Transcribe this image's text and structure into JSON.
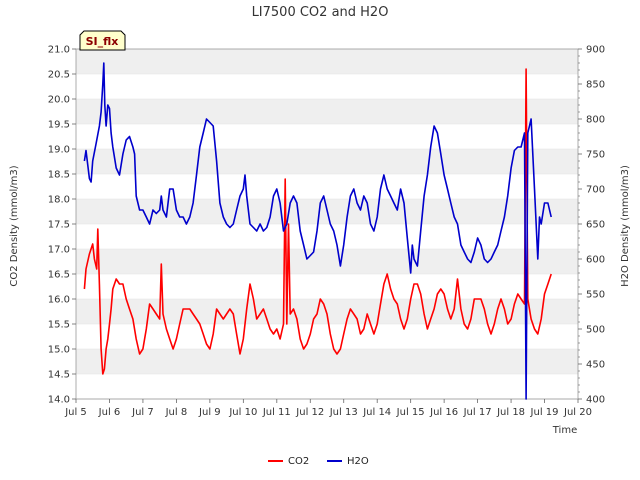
{
  "chart_data": {
    "type": "line",
    "title": "LI7500 CO2 and H2O",
    "xlabel": "Time",
    "ylabel_left": "CO2 Density (mmol/m3)",
    "ylabel_right": "H2O Density (mmol/m3)",
    "badge": "SI_flx",
    "x_ticks": [
      "Jul 5",
      "Jul 6",
      "Jul 7",
      "Jul 8",
      "Jul 9",
      "Jul 10",
      "Jul 11",
      "Jul 12",
      "Jul 13",
      "Jul 14",
      "Jul 15",
      "Jul 16",
      "Jul 17",
      "Jul 18",
      "Jul 19",
      "Jul 20"
    ],
    "xlim": [
      5,
      20
    ],
    "ylim_left": [
      14.0,
      21.0
    ],
    "ylim_right": [
      400,
      900
    ],
    "yticks_left": [
      "14.0",
      "14.5",
      "15.0",
      "15.5",
      "16.0",
      "16.5",
      "17.0",
      "17.5",
      "18.0",
      "18.5",
      "19.0",
      "19.5",
      "20.0",
      "20.5",
      "21.0"
    ],
    "yticks_right": [
      "400",
      "450",
      "500",
      "550",
      "600",
      "650",
      "700",
      "750",
      "800",
      "850",
      "900"
    ],
    "grid": "horizontal bands",
    "legend_position": "bottom-center",
    "colors": {
      "CO2": "#ff0000",
      "H2O": "#0000cc",
      "band": "#efefef",
      "axis": "#999999",
      "badge_bg": "#ffffcc"
    },
    "series": [
      {
        "name": "CO2",
        "axis": "left",
        "color": "#ff0000",
        "points": [
          [
            5.25,
            16.2
          ],
          [
            5.3,
            16.6
          ],
          [
            5.4,
            16.9
          ],
          [
            5.5,
            17.1
          ],
          [
            5.55,
            16.8
          ],
          [
            5.62,
            16.6
          ],
          [
            5.65,
            17.4
          ],
          [
            5.7,
            16.3
          ],
          [
            5.75,
            15.0
          ],
          [
            5.8,
            14.5
          ],
          [
            5.85,
            14.6
          ],
          [
            5.9,
            15.0
          ],
          [
            5.95,
            15.2
          ],
          [
            6.0,
            15.5
          ],
          [
            6.05,
            15.8
          ],
          [
            6.1,
            16.2
          ],
          [
            6.2,
            16.4
          ],
          [
            6.3,
            16.3
          ],
          [
            6.4,
            16.3
          ],
          [
            6.5,
            16.0
          ],
          [
            6.6,
            15.8
          ],
          [
            6.7,
            15.6
          ],
          [
            6.8,
            15.2
          ],
          [
            6.9,
            14.9
          ],
          [
            7.0,
            15.0
          ],
          [
            7.1,
            15.4
          ],
          [
            7.2,
            15.9
          ],
          [
            7.3,
            15.8
          ],
          [
            7.4,
            15.7
          ],
          [
            7.5,
            15.6
          ],
          [
            7.55,
            16.7
          ],
          [
            7.6,
            15.7
          ],
          [
            7.7,
            15.4
          ],
          [
            7.8,
            15.2
          ],
          [
            7.9,
            15.0
          ],
          [
            8.0,
            15.2
          ],
          [
            8.1,
            15.5
          ],
          [
            8.2,
            15.8
          ],
          [
            8.3,
            15.8
          ],
          [
            8.4,
            15.8
          ],
          [
            8.5,
            15.7
          ],
          [
            8.6,
            15.6
          ],
          [
            8.7,
            15.5
          ],
          [
            8.8,
            15.3
          ],
          [
            8.9,
            15.1
          ],
          [
            9.0,
            15.0
          ],
          [
            9.1,
            15.3
          ],
          [
            9.2,
            15.8
          ],
          [
            9.3,
            15.7
          ],
          [
            9.4,
            15.6
          ],
          [
            9.5,
            15.7
          ],
          [
            9.6,
            15.8
          ],
          [
            9.7,
            15.7
          ],
          [
            9.8,
            15.3
          ],
          [
            9.9,
            14.9
          ],
          [
            10.0,
            15.2
          ],
          [
            10.1,
            15.8
          ],
          [
            10.2,
            16.3
          ],
          [
            10.3,
            16.0
          ],
          [
            10.4,
            15.6
          ],
          [
            10.5,
            15.7
          ],
          [
            10.6,
            15.8
          ],
          [
            10.7,
            15.6
          ],
          [
            10.8,
            15.4
          ],
          [
            10.9,
            15.3
          ],
          [
            11.0,
            15.4
          ],
          [
            11.1,
            15.2
          ],
          [
            11.2,
            15.5
          ],
          [
            11.25,
            18.4
          ],
          [
            11.3,
            15.5
          ],
          [
            11.35,
            17.5
          ],
          [
            11.4,
            15.7
          ],
          [
            11.5,
            15.8
          ],
          [
            11.6,
            15.6
          ],
          [
            11.7,
            15.2
          ],
          [
            11.8,
            15.0
          ],
          [
            11.9,
            15.1
          ],
          [
            12.0,
            15.3
          ],
          [
            12.1,
            15.6
          ],
          [
            12.2,
            15.7
          ],
          [
            12.3,
            16.0
          ],
          [
            12.4,
            15.9
          ],
          [
            12.5,
            15.7
          ],
          [
            12.6,
            15.3
          ],
          [
            12.7,
            15.0
          ],
          [
            12.8,
            14.9
          ],
          [
            12.9,
            15.0
          ],
          [
            13.0,
            15.3
          ],
          [
            13.1,
            15.6
          ],
          [
            13.2,
            15.8
          ],
          [
            13.3,
            15.7
          ],
          [
            13.4,
            15.6
          ],
          [
            13.5,
            15.3
          ],
          [
            13.6,
            15.4
          ],
          [
            13.7,
            15.7
          ],
          [
            13.8,
            15.5
          ],
          [
            13.9,
            15.3
          ],
          [
            14.0,
            15.5
          ],
          [
            14.1,
            15.9
          ],
          [
            14.2,
            16.3
          ],
          [
            14.3,
            16.5
          ],
          [
            14.4,
            16.2
          ],
          [
            14.5,
            16.0
          ],
          [
            14.6,
            15.9
          ],
          [
            14.7,
            15.6
          ],
          [
            14.8,
            15.4
          ],
          [
            14.9,
            15.6
          ],
          [
            15.0,
            16.0
          ],
          [
            15.1,
            16.3
          ],
          [
            15.2,
            16.3
          ],
          [
            15.3,
            16.1
          ],
          [
            15.4,
            15.7
          ],
          [
            15.5,
            15.4
          ],
          [
            15.6,
            15.6
          ],
          [
            15.7,
            15.8
          ],
          [
            15.8,
            16.1
          ],
          [
            15.9,
            16.2
          ],
          [
            16.0,
            16.1
          ],
          [
            16.1,
            15.8
          ],
          [
            16.2,
            15.6
          ],
          [
            16.3,
            15.8
          ],
          [
            16.4,
            16.4
          ],
          [
            16.5,
            15.8
          ],
          [
            16.6,
            15.5
          ],
          [
            16.7,
            15.4
          ],
          [
            16.8,
            15.6
          ],
          [
            16.9,
            16.0
          ],
          [
            17.0,
            16.0
          ],
          [
            17.1,
            16.0
          ],
          [
            17.2,
            15.8
          ],
          [
            17.3,
            15.5
          ],
          [
            17.4,
            15.3
          ],
          [
            17.5,
            15.5
          ],
          [
            17.6,
            15.8
          ],
          [
            17.7,
            16.0
          ],
          [
            17.8,
            15.8
          ],
          [
            17.9,
            15.5
          ],
          [
            18.0,
            15.6
          ],
          [
            18.1,
            15.9
          ],
          [
            18.2,
            16.1
          ],
          [
            18.3,
            16.0
          ],
          [
            18.4,
            15.9
          ],
          [
            18.45,
            20.6
          ],
          [
            18.5,
            16.0
          ],
          [
            18.6,
            15.6
          ],
          [
            18.7,
            15.4
          ],
          [
            18.8,
            15.3
          ],
          [
            18.9,
            15.6
          ],
          [
            19.0,
            16.1
          ],
          [
            19.1,
            16.3
          ],
          [
            19.2,
            16.5
          ]
        ]
      },
      {
        "name": "H2O",
        "axis": "right",
        "color": "#0000cc",
        "points": [
          [
            5.25,
            740
          ],
          [
            5.3,
            755
          ],
          [
            5.35,
            735
          ],
          [
            5.4,
            715
          ],
          [
            5.45,
            710
          ],
          [
            5.5,
            740
          ],
          [
            5.6,
            765
          ],
          [
            5.7,
            790
          ],
          [
            5.75,
            810
          ],
          [
            5.8,
            850
          ],
          [
            5.83,
            880
          ],
          [
            5.86,
            820
          ],
          [
            5.9,
            790
          ],
          [
            5.95,
            820
          ],
          [
            6.0,
            815
          ],
          [
            6.05,
            780
          ],
          [
            6.1,
            760
          ],
          [
            6.2,
            730
          ],
          [
            6.3,
            720
          ],
          [
            6.4,
            750
          ],
          [
            6.5,
            770
          ],
          [
            6.6,
            775
          ],
          [
            6.7,
            760
          ],
          [
            6.75,
            750
          ],
          [
            6.8,
            690
          ],
          [
            6.9,
            670
          ],
          [
            7.0,
            670
          ],
          [
            7.1,
            660
          ],
          [
            7.2,
            650
          ],
          [
            7.3,
            670
          ],
          [
            7.4,
            665
          ],
          [
            7.5,
            670
          ],
          [
            7.55,
            690
          ],
          [
            7.6,
            670
          ],
          [
            7.7,
            660
          ],
          [
            7.8,
            700
          ],
          [
            7.9,
            700
          ],
          [
            8.0,
            670
          ],
          [
            8.1,
            660
          ],
          [
            8.2,
            660
          ],
          [
            8.3,
            650
          ],
          [
            8.4,
            660
          ],
          [
            8.5,
            680
          ],
          [
            8.6,
            720
          ],
          [
            8.7,
            760
          ],
          [
            8.8,
            780
          ],
          [
            8.9,
            800
          ],
          [
            9.0,
            795
          ],
          [
            9.1,
            790
          ],
          [
            9.2,
            740
          ],
          [
            9.3,
            680
          ],
          [
            9.4,
            660
          ],
          [
            9.5,
            650
          ],
          [
            9.6,
            645
          ],
          [
            9.7,
            650
          ],
          [
            9.8,
            670
          ],
          [
            9.9,
            690
          ],
          [
            10.0,
            700
          ],
          [
            10.05,
            720
          ],
          [
            10.1,
            690
          ],
          [
            10.2,
            650
          ],
          [
            10.3,
            645
          ],
          [
            10.4,
            640
          ],
          [
            10.5,
            650
          ],
          [
            10.6,
            640
          ],
          [
            10.7,
            645
          ],
          [
            10.8,
            660
          ],
          [
            10.9,
            690
          ],
          [
            11.0,
            700
          ],
          [
            11.1,
            680
          ],
          [
            11.2,
            640
          ],
          [
            11.3,
            650
          ],
          [
            11.4,
            680
          ],
          [
            11.5,
            690
          ],
          [
            11.6,
            680
          ],
          [
            11.7,
            640
          ],
          [
            11.8,
            620
          ],
          [
            11.9,
            600
          ],
          [
            12.0,
            605
          ],
          [
            12.1,
            610
          ],
          [
            12.2,
            640
          ],
          [
            12.3,
            680
          ],
          [
            12.4,
            690
          ],
          [
            12.5,
            670
          ],
          [
            12.6,
            650
          ],
          [
            12.7,
            640
          ],
          [
            12.8,
            620
          ],
          [
            12.9,
            590
          ],
          [
            13.0,
            620
          ],
          [
            13.1,
            660
          ],
          [
            13.2,
            690
          ],
          [
            13.3,
            700
          ],
          [
            13.4,
            680
          ],
          [
            13.5,
            670
          ],
          [
            13.6,
            690
          ],
          [
            13.7,
            680
          ],
          [
            13.8,
            650
          ],
          [
            13.9,
            640
          ],
          [
            14.0,
            660
          ],
          [
            14.1,
            700
          ],
          [
            14.2,
            720
          ],
          [
            14.3,
            700
          ],
          [
            14.4,
            690
          ],
          [
            14.5,
            680
          ],
          [
            14.6,
            670
          ],
          [
            14.7,
            700
          ],
          [
            14.8,
            680
          ],
          [
            14.9,
            630
          ],
          [
            15.0,
            580
          ],
          [
            15.05,
            620
          ],
          [
            15.1,
            600
          ],
          [
            15.2,
            590
          ],
          [
            15.3,
            640
          ],
          [
            15.4,
            690
          ],
          [
            15.5,
            720
          ],
          [
            15.6,
            760
          ],
          [
            15.7,
            790
          ],
          [
            15.8,
            780
          ],
          [
            15.9,
            750
          ],
          [
            16.0,
            720
          ],
          [
            16.1,
            700
          ],
          [
            16.2,
            680
          ],
          [
            16.3,
            660
          ],
          [
            16.4,
            650
          ],
          [
            16.5,
            620
          ],
          [
            16.6,
            610
          ],
          [
            16.7,
            600
          ],
          [
            16.8,
            595
          ],
          [
            16.9,
            610
          ],
          [
            17.0,
            630
          ],
          [
            17.1,
            620
          ],
          [
            17.2,
            600
          ],
          [
            17.3,
            595
          ],
          [
            17.4,
            600
          ],
          [
            17.5,
            610
          ],
          [
            17.6,
            620
          ],
          [
            17.7,
            640
          ],
          [
            17.8,
            660
          ],
          [
            17.9,
            690
          ],
          [
            18.0,
            730
          ],
          [
            18.1,
            755
          ],
          [
            18.2,
            760
          ],
          [
            18.3,
            760
          ],
          [
            18.4,
            780
          ],
          [
            18.45,
            400
          ],
          [
            18.5,
            780
          ],
          [
            18.6,
            800
          ],
          [
            18.7,
            700
          ],
          [
            18.8,
            600
          ],
          [
            18.85,
            660
          ],
          [
            18.9,
            650
          ],
          [
            19.0,
            680
          ],
          [
            19.1,
            680
          ],
          [
            19.2,
            660
          ]
        ]
      }
    ]
  }
}
